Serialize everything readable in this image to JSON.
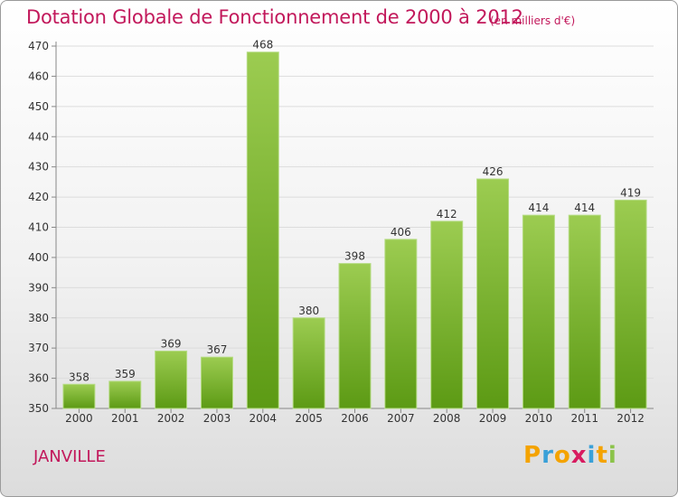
{
  "header": {
    "title": "Dotation Globale de Fonctionnement de 2000 à 2012",
    "unit_note": "(en milliers d'€)"
  },
  "footer": {
    "town": "JANVILLE",
    "logo_letters": [
      "P",
      "r",
      "o",
      "x",
      "i",
      "t",
      "i"
    ]
  },
  "colors": {
    "title": "#c2185b",
    "bar_top": "#9ccc51",
    "bar_bottom": "#5c9a14",
    "logo": [
      "#f4a300",
      "#3aa0d8",
      "#f4a300",
      "#d81b60",
      "#3aa0d8",
      "#f4a300",
      "#8bc34a"
    ]
  },
  "chart_data": {
    "type": "bar",
    "categories": [
      "2000",
      "2001",
      "2002",
      "2003",
      "2004",
      "2005",
      "2006",
      "2007",
      "2008",
      "2009",
      "2010",
      "2011",
      "2012"
    ],
    "values": [
      358,
      359,
      369,
      367,
      468,
      380,
      398,
      406,
      412,
      426,
      414,
      414,
      419
    ],
    "ylim": [
      350,
      470
    ],
    "yticks": [
      350,
      360,
      370,
      380,
      390,
      400,
      410,
      420,
      430,
      440,
      450,
      460,
      470
    ],
    "grid": true,
    "data_labels": true
  }
}
